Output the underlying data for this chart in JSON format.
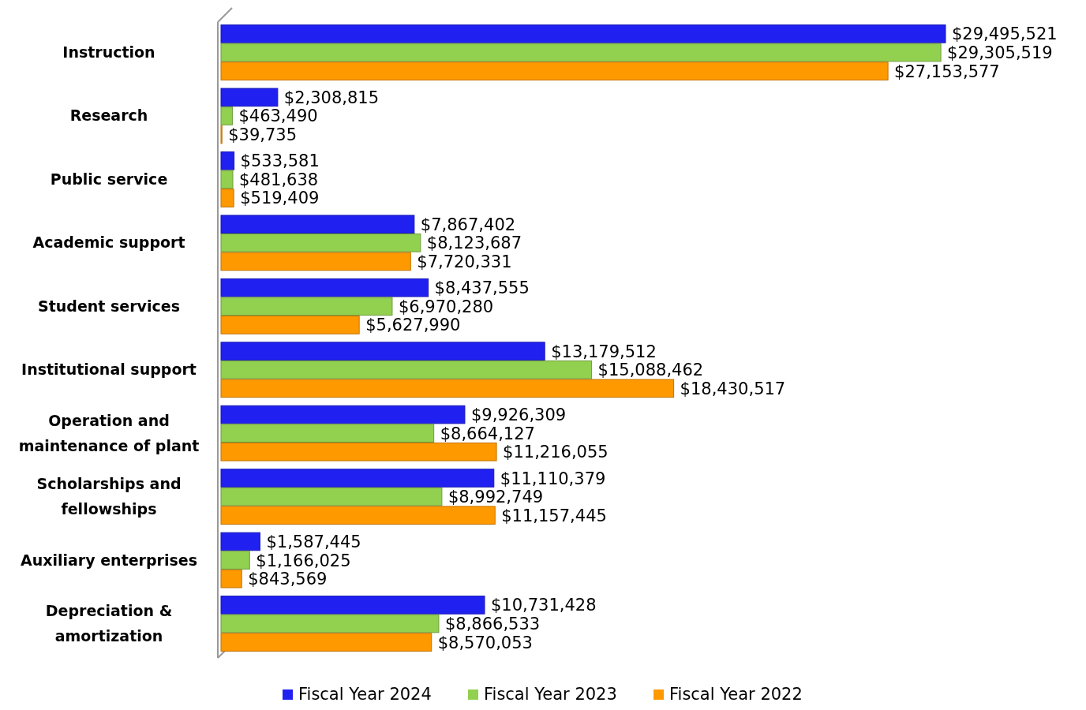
{
  "chart_data": {
    "type": "bar",
    "orientation": "horizontal",
    "categories": [
      "Instruction",
      "Research",
      "Public service",
      "Academic support",
      "Student services",
      "Institutional support",
      "Operation and maintenance of plant",
      "Scholarships and fellowships",
      "Auxiliary enterprises",
      "Depreciation & amortization"
    ],
    "series": [
      {
        "name": "Fiscal Year 2024",
        "color": "#2020f0",
        "values": [
          29495521,
          2308815,
          533581,
          7867402,
          8437555,
          13179512,
          9926309,
          11110379,
          1587445,
          10731428
        ],
        "value_labels": [
          "$29,495,521",
          "$2,308,815",
          "$533,581",
          "$7,867,402",
          "$8,437,555",
          "$13,179,512",
          "$9,926,309",
          "$11,110,379",
          "$1,587,445",
          "$10,731,428"
        ]
      },
      {
        "name": "Fiscal Year 2023",
        "color": "#92d050",
        "values": [
          29305519,
          463490,
          481638,
          8123687,
          6970280,
          15088462,
          8664127,
          8992749,
          1166025,
          8866533
        ],
        "value_labels": [
          "$29,305,519",
          "$463,490",
          "$481,638",
          "$8,123,687",
          "$6,970,280",
          "$15,088,462",
          "$8,664,127",
          "$8,992,749",
          "$1,166,025",
          "$8,866,533"
        ]
      },
      {
        "name": "Fiscal Year 2022",
        "color": "#ff9900",
        "values": [
          27153577,
          39735,
          519409,
          7720331,
          5627990,
          18430517,
          11216055,
          11157445,
          843569,
          8570053
        ],
        "value_labels": [
          "$27,153,577",
          "$39,735",
          "$519,409",
          "$7,720,331",
          "$5,627,990",
          "$18,430,517",
          "$11,216,055",
          "$11,157,445",
          "$843,569",
          "$8,570,053"
        ]
      }
    ],
    "legend": "bottom"
  }
}
